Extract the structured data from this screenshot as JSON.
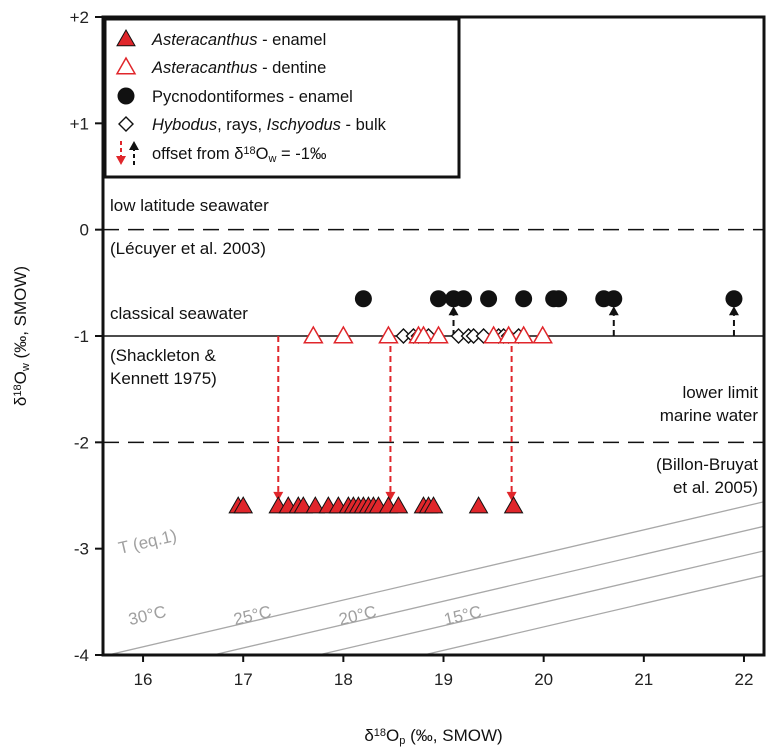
{
  "chart_data": {
    "type": "scatter",
    "xlabel": {
      "main": "δ",
      "sup": "18",
      "mid": "O",
      "sub": "p",
      "rest": " (‰, SMOW)"
    },
    "ylabel": {
      "main": "δ",
      "sup": "18",
      "mid": "O",
      "sub": "w",
      "rest": " (‰, SMOW)"
    },
    "xlim": [
      15.6,
      22.2
    ],
    "ylim": [
      -4,
      2
    ],
    "x_ticks": [
      {
        "v": 16,
        "label": "16"
      },
      {
        "v": 17,
        "label": "17"
      },
      {
        "v": 18,
        "label": "18"
      },
      {
        "v": 19,
        "label": "19"
      },
      {
        "v": 20,
        "label": "20"
      },
      {
        "v": 21,
        "label": "21"
      },
      {
        "v": 22,
        "label": "22"
      }
    ],
    "y_ticks": [
      {
        "v": 2,
        "label": "+2"
      },
      {
        "v": 1,
        "label": "+1"
      },
      {
        "v": 0,
        "label": "0"
      },
      {
        "v": -1,
        "label": "-1"
      },
      {
        "v": -2,
        "label": "-2"
      },
      {
        "v": -3,
        "label": "-3"
      },
      {
        "v": -4,
        "label": "-4"
      }
    ],
    "reference_lines": [
      {
        "y": 0,
        "style": "dashed"
      },
      {
        "y": -1,
        "style": "solid"
      },
      {
        "y": -2,
        "style": "dashed"
      }
    ],
    "isotherms": [
      {
        "label": "30°C",
        "x_at_y_minus4": 15.65
      },
      {
        "label": "25°C",
        "x_at_y_minus4": 16.7
      },
      {
        "label": "20°C",
        "x_at_y_minus4": 17.75
      },
      {
        "label": "15°C",
        "x_at_y_minus4": 18.8
      }
    ],
    "isotherm_title": "T (eq.1)",
    "annotations": {
      "low_lat_1": "low latitude seawater",
      "low_lat_2": "(Lécuyer et al. 2003)",
      "classical_1": "classical seawater",
      "classical_2": "(Shackleton &",
      "classical_3": "Kennett 1975)",
      "lower_1": "lower limit",
      "lower_2": "marine water",
      "lower_3": "(Billon-Bruyat",
      "lower_4": "et al. 2005)"
    },
    "series": [
      {
        "name": "Asteracanthus - enamel",
        "marker": "triangle-filled",
        "color": "#e0262b",
        "y": -2.6,
        "x": [
          16.95,
          17.0,
          17.35,
          17.45,
          17.55,
          17.6,
          17.72,
          17.85,
          17.95,
          18.05,
          18.1,
          18.15,
          18.2,
          18.25,
          18.3,
          18.35,
          18.45,
          18.55,
          18.8,
          18.85,
          18.9,
          19.35,
          19.7
        ]
      },
      {
        "name": "Asteracanthus - dentine",
        "marker": "triangle-open",
        "color": "#e0262b",
        "y": -1.0,
        "x": [
          17.7,
          18.0,
          18.45,
          18.75,
          18.8,
          18.95,
          19.5,
          19.65,
          19.8,
          19.99
        ]
      },
      {
        "name": "Pycnodontiformes - enamel",
        "marker": "circle-filled",
        "color": "#111111",
        "y": -0.65,
        "x": [
          18.2,
          18.95,
          19.1,
          19.2,
          19.45,
          19.8,
          20.1,
          20.15,
          20.6,
          20.7,
          21.9
        ]
      },
      {
        "name": "Hybodus, rays, Ischyodus - bulk",
        "marker": "diamond-open",
        "color": "#111111",
        "y": -1.0,
        "x": [
          18.6,
          18.7,
          18.75,
          18.85,
          19.15,
          19.25,
          19.3,
          19.4,
          19.55,
          19.6,
          19.65,
          19.75
        ]
      }
    ],
    "offset_arrows": [
      {
        "x": 17.35,
        "from": -1.0,
        "to": -2.55,
        "color": "#e0262b"
      },
      {
        "x": 18.47,
        "from": -1.0,
        "to": -2.55,
        "color": "#e0262b"
      },
      {
        "x": 19.68,
        "from": -1.0,
        "to": -2.55,
        "color": "#e0262b"
      },
      {
        "x": 19.1,
        "from": -1.0,
        "to": -0.72,
        "color": "#111111"
      },
      {
        "x": 20.7,
        "from": -1.0,
        "to": -0.72,
        "color": "#111111"
      },
      {
        "x": 21.9,
        "from": -1.0,
        "to": -0.72,
        "color": "#111111"
      }
    ],
    "legend": {
      "placement": "top-left",
      "entries": [
        {
          "parts": [
            {
              "t": "Asteracanthus",
              "i": true
            },
            {
              "t": " - enamel",
              "i": false
            }
          ]
        },
        {
          "parts": [
            {
              "t": "Asteracanthus",
              "i": true
            },
            {
              "t": " - dentine",
              "i": false
            }
          ]
        },
        {
          "parts": [
            {
              "t": "Pycnodontiformes - enamel",
              "i": false
            }
          ]
        },
        {
          "parts": [
            {
              "t": "Hybodus",
              "i": true
            },
            {
              "t": ", rays, ",
              "i": false
            },
            {
              "t": "Ischyodus",
              "i": true
            },
            {
              "t": " - bulk",
              "i": false
            }
          ]
        }
      ],
      "offset_text": {
        "main": "offset from δ",
        "sup": "18",
        "mid": "O",
        "sub": "w",
        "rest": " = -1‰"
      }
    }
  }
}
